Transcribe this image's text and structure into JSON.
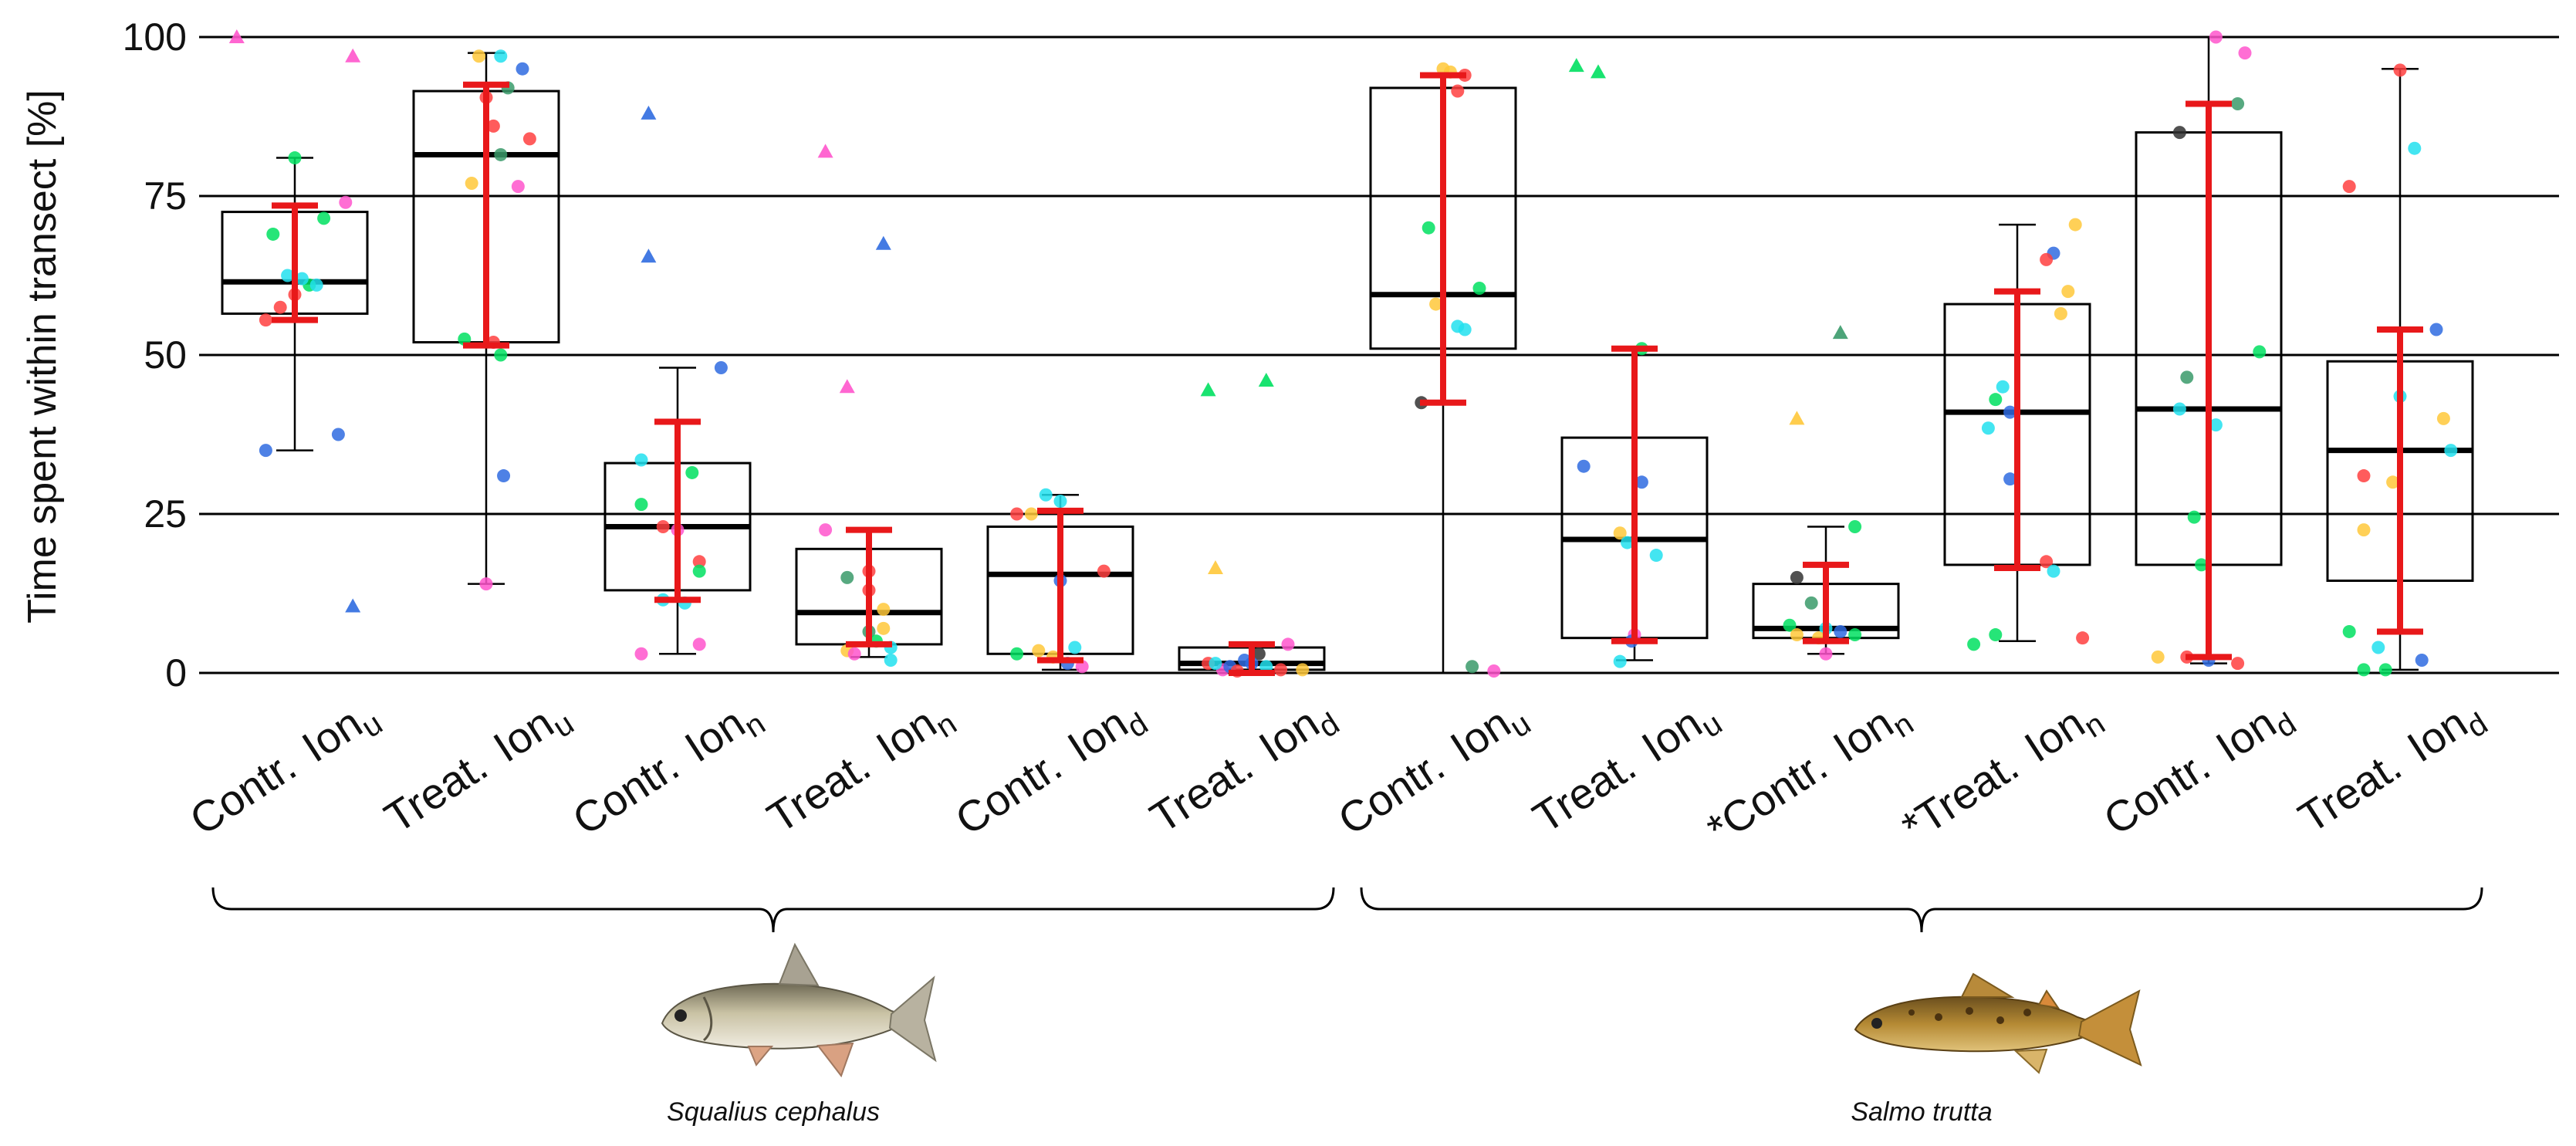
{
  "chart_data": {
    "type": "box",
    "ylabel": "Time spent within transect [%]",
    "ylim": [
      0,
      100
    ],
    "yticks": [
      0,
      25,
      50,
      75,
      100
    ],
    "grid": true,
    "colors": {
      "box_edge": "#000000",
      "median": "#000000",
      "mean_sd": "#e8181a",
      "point_palette": [
        "#ff4040",
        "#00e060",
        "#2f6be0",
        "#ffc83a",
        "#ff55cc",
        "#22e0ee",
        "#3a9a6a",
        "#333333"
      ]
    },
    "groups": [
      {
        "name": "Squalius cephalus",
        "label": "Squalius cephalus",
        "icon": "chub-fish-icon",
        "categories": [
          0,
          1,
          2,
          3,
          4,
          5
        ]
      },
      {
        "name": "Salmo trutta",
        "label": "Salmo trutta",
        "icon": "trout-fish-icon",
        "categories": [
          6,
          7,
          8,
          9,
          10,
          11
        ]
      }
    ],
    "categories": [
      {
        "prefix": "Contr.",
        "ion": "Ion",
        "sub": "u",
        "star": false
      },
      {
        "prefix": "Treat.",
        "ion": "Ion",
        "sub": "u",
        "star": false
      },
      {
        "prefix": "Contr.",
        "ion": "Ion",
        "sub": "n",
        "star": false
      },
      {
        "prefix": "Treat.",
        "ion": "Ion",
        "sub": "n",
        "star": false
      },
      {
        "prefix": "Contr.",
        "ion": "Ion",
        "sub": "d",
        "star": false
      },
      {
        "prefix": "Treat.",
        "ion": "Ion",
        "sub": "d",
        "star": false
      },
      {
        "prefix": "Contr.",
        "ion": "Ion",
        "sub": "u",
        "star": false
      },
      {
        "prefix": "Treat.",
        "ion": "Ion",
        "sub": "u",
        "star": false
      },
      {
        "prefix": "Contr.",
        "ion": "Ion",
        "sub": "n",
        "star": true
      },
      {
        "prefix": "Treat.",
        "ion": "Ion",
        "sub": "n",
        "star": true
      },
      {
        "prefix": "Contr.",
        "ion": "Ion",
        "sub": "d",
        "star": false
      },
      {
        "prefix": "Treat.",
        "ion": "Ion",
        "sub": "d",
        "star": false
      }
    ],
    "boxes": [
      {
        "q1": 56.5,
        "median": 61.5,
        "q3": 72.5,
        "wlow": 35,
        "whigh": 81,
        "mean": 64.5,
        "sdlow": 55.5,
        "sdhigh": 73.5,
        "points": [
          [
            0.5,
            59.5,
            0
          ],
          [
            0.6,
            61,
            1
          ],
          [
            0.4,
            57.5,
            0
          ],
          [
            0.3,
            55.5,
            0
          ],
          [
            0.55,
            62,
            5
          ],
          [
            0.45,
            62.5,
            5
          ],
          [
            0.35,
            69,
            1
          ],
          [
            0.7,
            71.5,
            1
          ],
          [
            0.85,
            74,
            4
          ],
          [
            0.3,
            35,
            2
          ],
          [
            0.8,
            37.5,
            2
          ],
          [
            0.5,
            81,
            1
          ],
          [
            0.65,
            61,
            5
          ]
        ],
        "outliers": [
          [
            0.1,
            100,
            4
          ],
          [
            0.9,
            97,
            4
          ],
          [
            0.9,
            10.5,
            2
          ]
        ]
      },
      {
        "q1": 52,
        "median": 81.5,
        "q3": 91.5,
        "wlow": 14,
        "whigh": 97.5,
        "mean": 71.5,
        "sdlow": 51.5,
        "sdhigh": 92.5,
        "points": [
          [
            0.45,
            97,
            3
          ],
          [
            0.6,
            97,
            5
          ],
          [
            0.75,
            95,
            2
          ],
          [
            0.5,
            90.5,
            0
          ],
          [
            0.65,
            92,
            6
          ],
          [
            0.55,
            86,
            0
          ],
          [
            0.8,
            84,
            0
          ],
          [
            0.6,
            81.5,
            6
          ],
          [
            0.4,
            77,
            3
          ],
          [
            0.72,
            76.5,
            4
          ],
          [
            0.35,
            52.5,
            1
          ],
          [
            0.55,
            52,
            0
          ],
          [
            0.6,
            50,
            1
          ],
          [
            0.62,
            31,
            2
          ],
          [
            0.5,
            14,
            4
          ]
        ],
        "outliers": []
      },
      {
        "q1": 13,
        "median": 23,
        "q3": 33,
        "wlow": 3,
        "whigh": 48,
        "mean": 25.5,
        "sdlow": 11.5,
        "sdhigh": 39.5,
        "points": [
          [
            0.25,
            33.5,
            5
          ],
          [
            0.6,
            31.5,
            1
          ],
          [
            0.25,
            26.5,
            1
          ],
          [
            0.4,
            23,
            0
          ],
          [
            0.5,
            22.5,
            4
          ],
          [
            0.65,
            17.5,
            0
          ],
          [
            0.65,
            16,
            1
          ],
          [
            0.4,
            11.5,
            5
          ],
          [
            0.55,
            11,
            5
          ],
          [
            0.65,
            4.5,
            4
          ],
          [
            0.25,
            3,
            4
          ],
          [
            0.8,
            48,
            2
          ]
        ],
        "outliers": [
          [
            0.3,
            88,
            2
          ],
          [
            0.3,
            65.5,
            2
          ]
        ]
      },
      {
        "q1": 4.5,
        "median": 9.5,
        "q3": 19.5,
        "wlow": 2.5,
        "whigh": 22.5,
        "mean": 13.5,
        "sdlow": 4.5,
        "sdhigh": 22.5,
        "points": [
          [
            0.2,
            22.5,
            4
          ],
          [
            0.5,
            16,
            0
          ],
          [
            0.35,
            15,
            6
          ],
          [
            0.5,
            13,
            0
          ],
          [
            0.6,
            10,
            3
          ],
          [
            0.6,
            7,
            3
          ],
          [
            0.5,
            6.5,
            6
          ],
          [
            0.55,
            5,
            1
          ],
          [
            0.65,
            4,
            5
          ],
          [
            0.35,
            3.5,
            3
          ],
          [
            0.4,
            3,
            4
          ],
          [
            0.65,
            2,
            5
          ]
        ],
        "outliers": [
          [
            0.2,
            82,
            4
          ],
          [
            0.6,
            67.5,
            2
          ],
          [
            0.35,
            45,
            4
          ]
        ]
      },
      {
        "q1": 3,
        "median": 15.5,
        "q3": 23,
        "wlow": 0.5,
        "whigh": 28,
        "mean": 15,
        "sdlow": 2,
        "sdhigh": 25.5,
        "points": [
          [
            0.4,
            28,
            5
          ],
          [
            0.5,
            27,
            5
          ],
          [
            0.2,
            25,
            0
          ],
          [
            0.3,
            25,
            3
          ],
          [
            0.8,
            16,
            0
          ],
          [
            0.5,
            14.5,
            2
          ],
          [
            0.2,
            3,
            1
          ],
          [
            0.35,
            3.5,
            3
          ],
          [
            0.6,
            4,
            5
          ],
          [
            0.45,
            2.5,
            3
          ],
          [
            0.55,
            1.5,
            2
          ],
          [
            0.65,
            1,
            4
          ]
        ],
        "outliers": []
      },
      {
        "q1": 0.5,
        "median": 1.5,
        "q3": 4,
        "wlow": 0,
        "whigh": 4.5,
        "mean": 2,
        "sdlow": 0,
        "sdhigh": 4.5,
        "points": [
          [
            0.2,
            1.5,
            0
          ],
          [
            0.3,
            0.5,
            4
          ],
          [
            0.35,
            1,
            2
          ],
          [
            0.45,
            2,
            2
          ],
          [
            0.55,
            3,
            7
          ],
          [
            0.6,
            1,
            5
          ],
          [
            0.7,
            0.5,
            0
          ],
          [
            0.75,
            4.5,
            4
          ],
          [
            0.85,
            0.5,
            3
          ],
          [
            0.4,
            0.3,
            0
          ],
          [
            0.5,
            1.5,
            2
          ],
          [
            0.25,
            1.5,
            5
          ]
        ],
        "outliers": [
          [
            0.2,
            44.5,
            1
          ],
          [
            0.6,
            46,
            1
          ],
          [
            0.25,
            16.5,
            3
          ]
        ]
      },
      {
        "q1": 51,
        "median": 59.5,
        "q3": 92,
        "wlow": 0,
        "whigh": 94,
        "mean": 68,
        "sdlow": 42.5,
        "sdhigh": 94,
        "points": [
          [
            0.5,
            95,
            3
          ],
          [
            0.55,
            94.5,
            3
          ],
          [
            0.65,
            94,
            0
          ],
          [
            0.6,
            91.5,
            0
          ],
          [
            0.4,
            70,
            1
          ],
          [
            0.45,
            58,
            3
          ],
          [
            0.75,
            60.5,
            1
          ],
          [
            0.6,
            54.5,
            5
          ],
          [
            0.65,
            54,
            5
          ],
          [
            0.35,
            42.5,
            7
          ],
          [
            0.7,
            1,
            6
          ],
          [
            0.85,
            0.3,
            4
          ]
        ],
        "outliers": []
      },
      {
        "q1": 5.5,
        "median": 21,
        "q3": 37,
        "wlow": 2,
        "whigh": 51,
        "mean": 28,
        "sdlow": 5,
        "sdhigh": 51,
        "points": [
          [
            0.55,
            51,
            1
          ],
          [
            0.15,
            32.5,
            2
          ],
          [
            0.55,
            30,
            2
          ],
          [
            0.4,
            22,
            3
          ],
          [
            0.45,
            20.5,
            5
          ],
          [
            0.65,
            18.5,
            5
          ],
          [
            0.5,
            6,
            4
          ],
          [
            0.48,
            5,
            2
          ],
          [
            0.4,
            1.8,
            5
          ]
        ],
        "outliers": [
          [
            0.1,
            95.5,
            1
          ],
          [
            0.25,
            94.5,
            1
          ]
        ]
      },
      {
        "q1": 5.5,
        "median": 7,
        "q3": 14,
        "wlow": 3,
        "whigh": 23,
        "mean": 11,
        "sdlow": 5,
        "sdhigh": 17,
        "points": [
          [
            0.7,
            23,
            1
          ],
          [
            0.3,
            15,
            7
          ],
          [
            0.4,
            11,
            6
          ],
          [
            0.25,
            7.5,
            1
          ],
          [
            0.5,
            7,
            5
          ],
          [
            0.6,
            6.5,
            2
          ],
          [
            0.3,
            6,
            3
          ],
          [
            0.7,
            6,
            1
          ],
          [
            0.45,
            5.5,
            3
          ],
          [
            0.5,
            3,
            4
          ]
        ],
        "outliers": [
          [
            0.3,
            40,
            3
          ],
          [
            0.6,
            53.5,
            6
          ]
        ]
      },
      {
        "q1": 17,
        "median": 41,
        "q3": 58,
        "wlow": 5,
        "whigh": 70.5,
        "mean": 38,
        "sdlow": 16.5,
        "sdhigh": 60,
        "points": [
          [
            0.9,
            70.5,
            3
          ],
          [
            0.75,
            66,
            2
          ],
          [
            0.7,
            65,
            0
          ],
          [
            0.85,
            60,
            3
          ],
          [
            0.8,
            56.5,
            3
          ],
          [
            0.4,
            45,
            5
          ],
          [
            0.35,
            43,
            1
          ],
          [
            0.45,
            41,
            2
          ],
          [
            0.3,
            38.5,
            5
          ],
          [
            0.45,
            30.5,
            2
          ],
          [
            0.7,
            17.5,
            0
          ],
          [
            0.75,
            16,
            5
          ],
          [
            0.2,
            4.5,
            1
          ],
          [
            0.35,
            6,
            1
          ],
          [
            0.95,
            5.5,
            0
          ]
        ],
        "outliers": []
      },
      {
        "q1": 17,
        "median": 41.5,
        "q3": 85,
        "wlow": 1.5,
        "whigh": 100,
        "mean": 46,
        "sdlow": 2.5,
        "sdhigh": 89.5,
        "points": [
          [
            0.55,
            100,
            4
          ],
          [
            0.75,
            97.5,
            4
          ],
          [
            0.7,
            89.5,
            6
          ],
          [
            0.3,
            85,
            7
          ],
          [
            0.35,
            46.5,
            6
          ],
          [
            0.85,
            50.5,
            1
          ],
          [
            0.3,
            41.5,
            5
          ],
          [
            0.55,
            39,
            5
          ],
          [
            0.4,
            24.5,
            1
          ],
          [
            0.45,
            17,
            1
          ],
          [
            0.15,
            2.5,
            3
          ],
          [
            0.35,
            2.5,
            0
          ],
          [
            0.5,
            2,
            2
          ],
          [
            0.7,
            1.5,
            0
          ]
        ],
        "outliers": []
      },
      {
        "q1": 14.5,
        "median": 35,
        "q3": 49,
        "wlow": 0.5,
        "whigh": 95,
        "mean": 30,
        "sdlow": 6.5,
        "sdhigh": 54,
        "points": [
          [
            0.15,
            76.5,
            0
          ],
          [
            0.25,
            31,
            0
          ],
          [
            0.5,
            94.8,
            0
          ],
          [
            0.6,
            82.5,
            5
          ],
          [
            0.75,
            54,
            2
          ],
          [
            0.5,
            43.5,
            5
          ],
          [
            0.8,
            40,
            3
          ],
          [
            0.85,
            35,
            5
          ],
          [
            0.45,
            30,
            3
          ],
          [
            0.25,
            22.5,
            3
          ],
          [
            0.15,
            6.5,
            1
          ],
          [
            0.35,
            4,
            5
          ],
          [
            0.65,
            2,
            2
          ],
          [
            0.25,
            0.5,
            1
          ],
          [
            0.4,
            0.5,
            1
          ]
        ],
        "outliers": []
      }
    ]
  }
}
